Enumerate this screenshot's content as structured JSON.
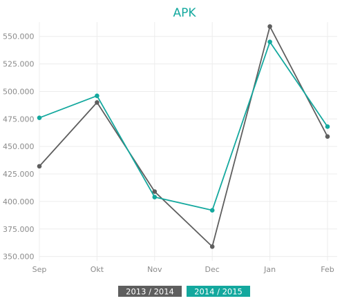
{
  "chart_data": {
    "type": "line",
    "title": "APK",
    "xlabel": "",
    "ylabel": "",
    "categories": [
      "Sep",
      "Okt",
      "Nov",
      "Dec",
      "Jan",
      "Feb"
    ],
    "y_ticks": [
      "350.000",
      "375.000",
      "400.000",
      "425.000",
      "450.000",
      "475.000",
      "500.000",
      "525.000",
      "550.000"
    ],
    "y_tick_values": [
      350000,
      375000,
      400000,
      425000,
      450000,
      475000,
      500000,
      525000,
      550000
    ],
    "ylim": [
      346000,
      563000
    ],
    "grid": true,
    "legend_position": "bottom-center",
    "series": [
      {
        "name": "2013 / 2014",
        "color": "#5e5e5e",
        "values": [
          432000,
          490000,
          409000,
          359000,
          559000,
          459000
        ]
      },
      {
        "name": "2014 / 2015",
        "color": "#13a89e",
        "values": [
          476000,
          496000,
          404000,
          392000,
          545000,
          468000
        ]
      }
    ]
  }
}
